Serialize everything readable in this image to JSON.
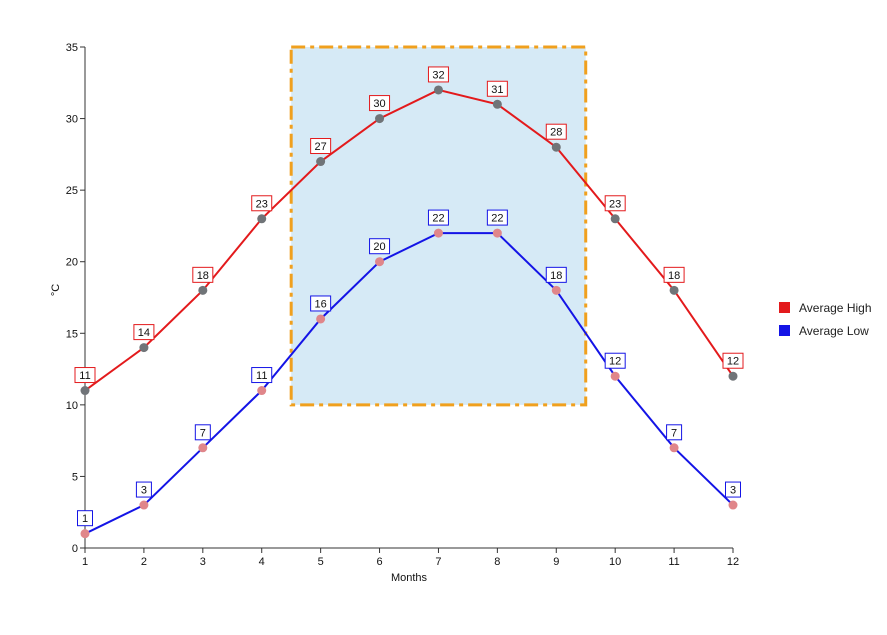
{
  "chart_data": {
    "type": "line",
    "title": "",
    "xlabel": "Months",
    "ylabel": "°C",
    "xlim": [
      1,
      12
    ],
    "ylim": [
      0,
      35
    ],
    "x": [
      1,
      2,
      3,
      4,
      5,
      6,
      7,
      8,
      9,
      10,
      11,
      12
    ],
    "x_ticks": [
      1,
      2,
      3,
      4,
      5,
      6,
      7,
      8,
      9,
      10,
      11,
      12
    ],
    "y_ticks": [
      0,
      5,
      10,
      15,
      20,
      25,
      30,
      35
    ],
    "grid": false,
    "legend_position": "right",
    "series": [
      {
        "name": "Average High",
        "color": "#e31a1c",
        "marker_color": "#707478",
        "values": [
          11,
          14,
          18,
          23,
          27,
          30,
          32,
          31,
          28,
          23,
          18,
          12
        ],
        "labels": [
          "11",
          "14",
          "18",
          "23",
          "27",
          "30",
          "32",
          "31",
          "28",
          "23",
          "18",
          "12"
        ]
      },
      {
        "name": "Average Low",
        "color": "#1414e6",
        "marker_color": "#e0868a",
        "values": [
          1,
          3,
          7,
          11,
          16,
          20,
          22,
          22,
          18,
          12,
          7,
          3
        ],
        "labels": [
          "1",
          "3",
          "7",
          "11",
          "16",
          "20",
          "22",
          "22",
          "18",
          "12",
          "7",
          "3"
        ]
      }
    ],
    "highlight_region": {
      "x_range": [
        4.5,
        9.5
      ],
      "y_range": [
        10,
        35
      ],
      "fill": "#d6eaf6",
      "border_color": "#f0a01e"
    }
  }
}
